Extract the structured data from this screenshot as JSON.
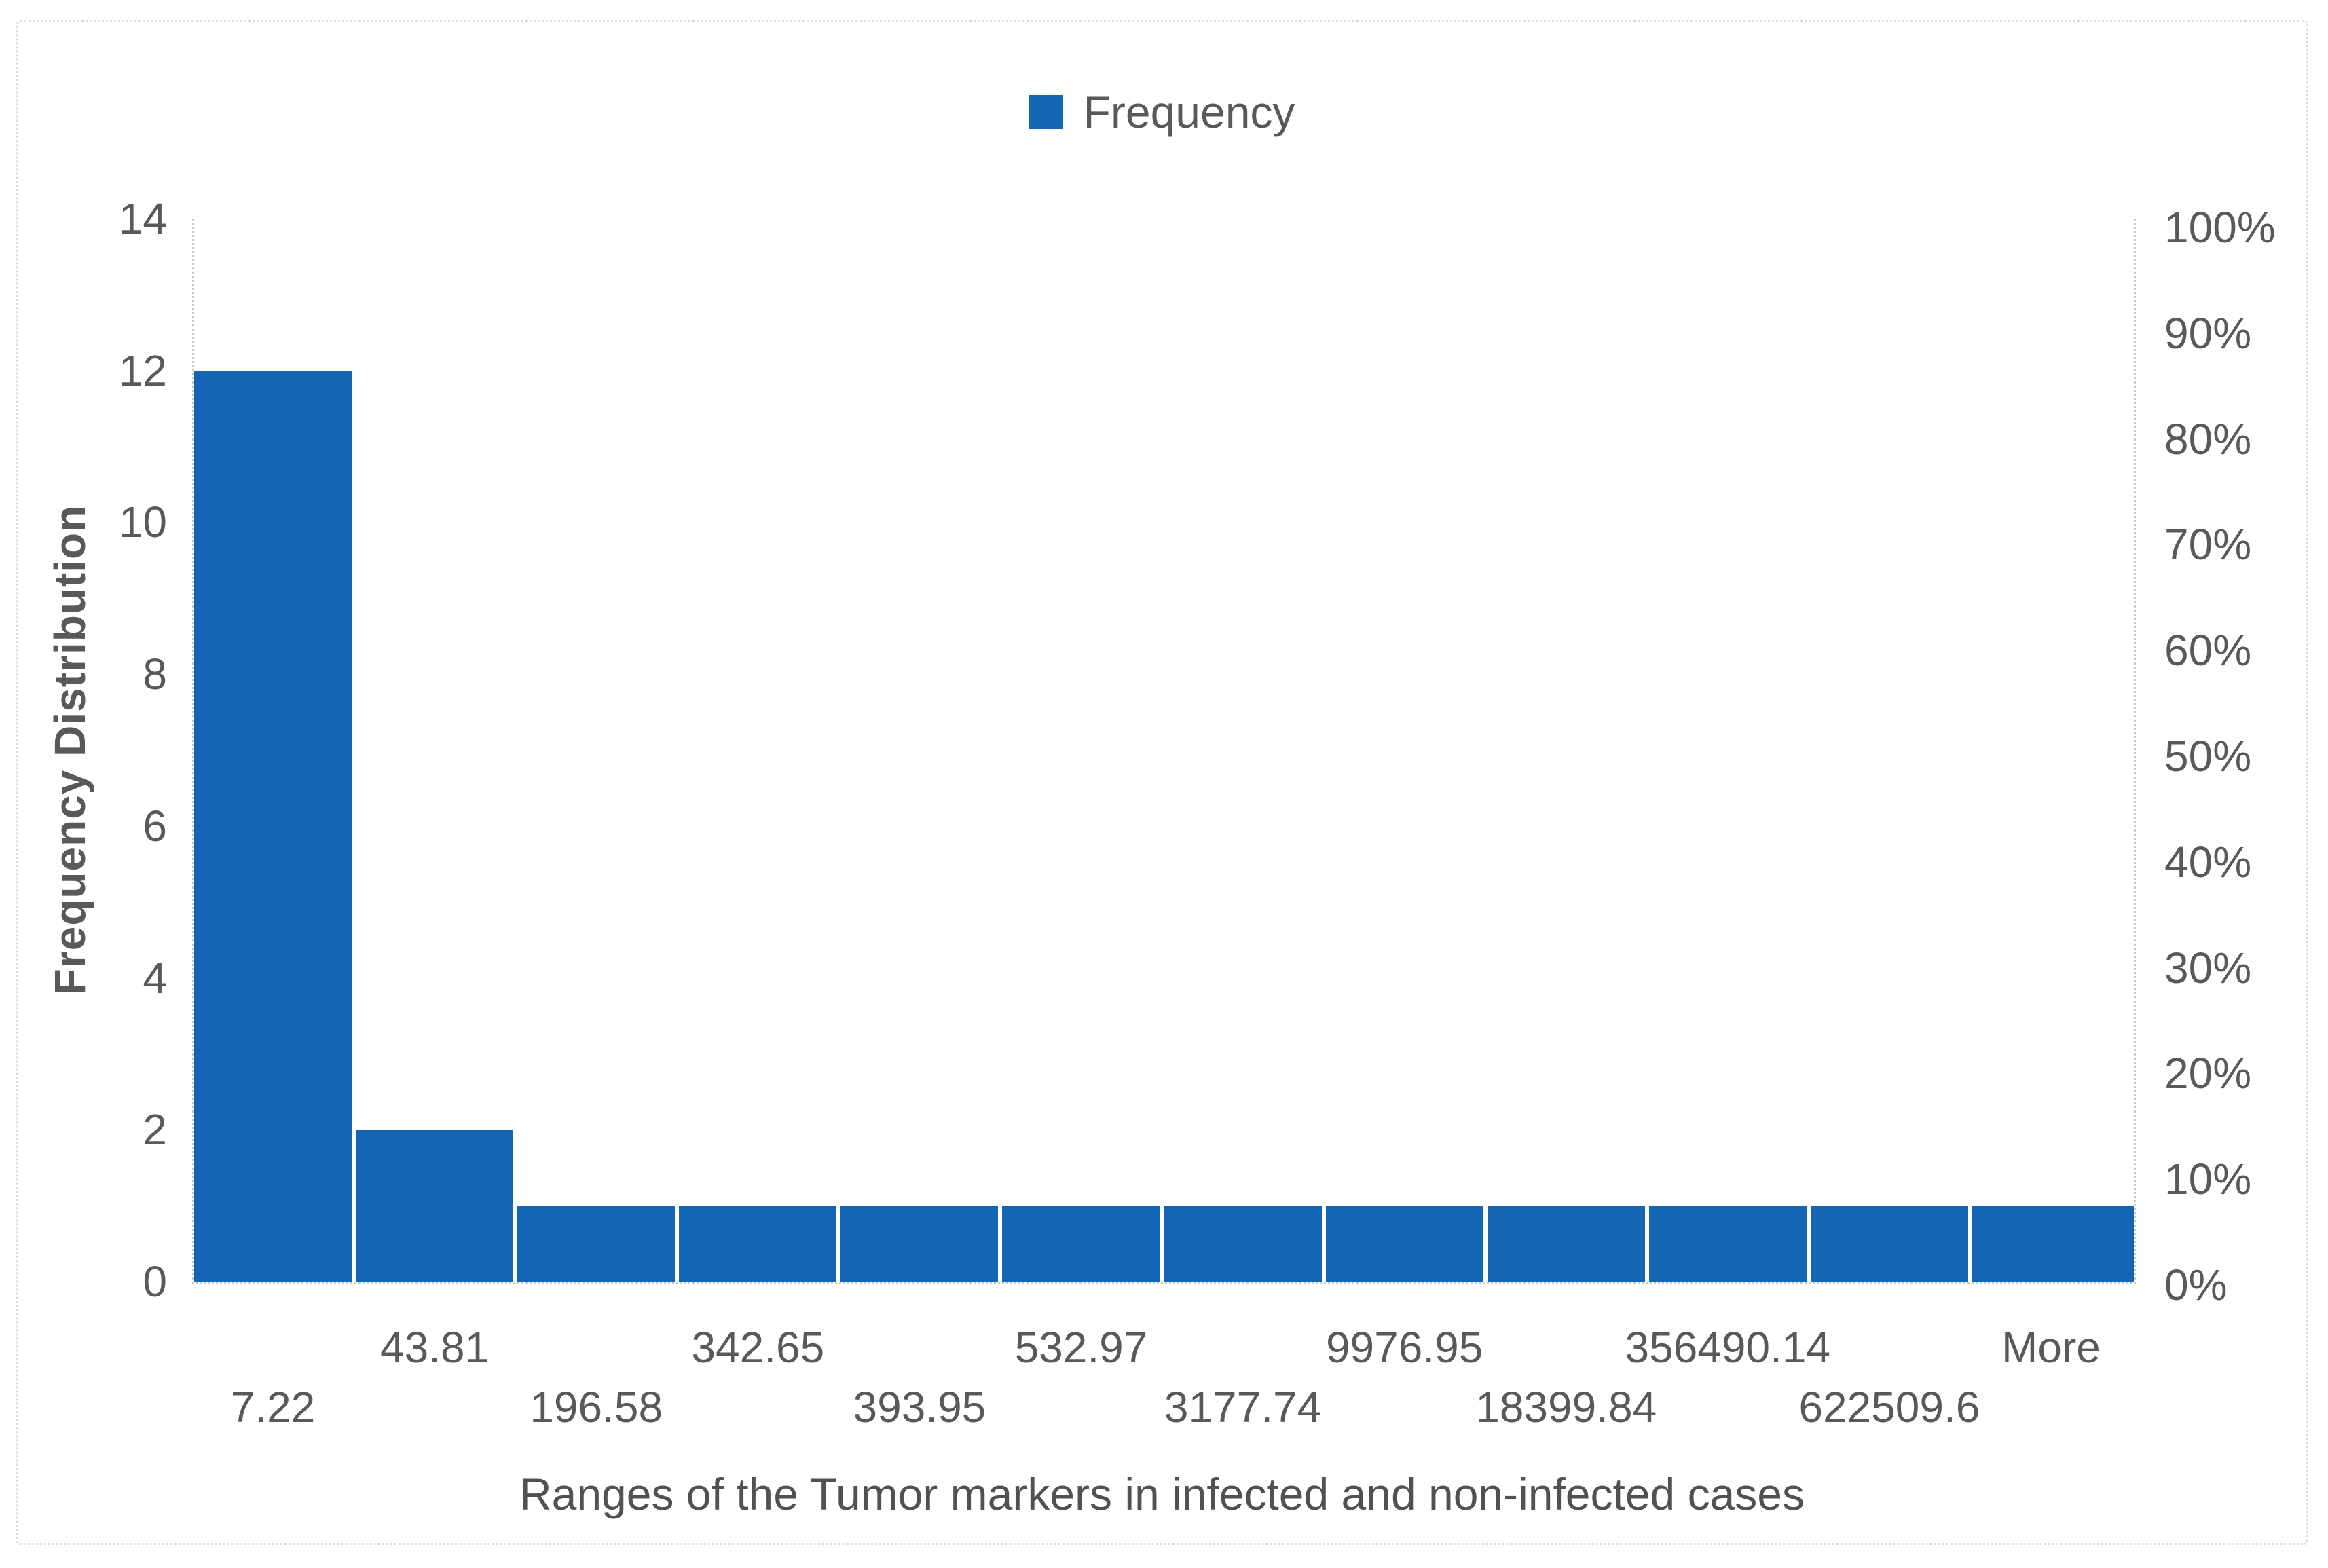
{
  "legend": {
    "label": "Frequency"
  },
  "axes": {
    "left": {
      "title": "Frequency Distribution",
      "ticks": [
        0,
        2,
        4,
        6,
        8,
        10,
        12,
        14
      ],
      "max": 14
    },
    "right": {
      "ticks": [
        "0%",
        "10%",
        "20%",
        "30%",
        "40%",
        "50%",
        "60%",
        "70%",
        "80%",
        "90%",
        "100%"
      ]
    },
    "bottom": {
      "title": "Ranges of the Tumor markers in infected and non-infected cases"
    }
  },
  "colors": {
    "bar_fill": "#1565B5",
    "axis_line": "#c9c9c9",
    "figure_border": "#dcdcdc",
    "tick_text": "#595959",
    "background": "#ffffff"
  },
  "chart_data": {
    "type": "bar",
    "title": "",
    "categories": [
      "7.22",
      "43.81",
      "196.58",
      "342.65",
      "393.95",
      "532.97",
      "3177.74",
      "9976.95",
      "18399.84",
      "356490.14",
      "622509.6",
      "More"
    ],
    "series": [
      {
        "name": "Frequency",
        "values": [
          12,
          2,
          1,
          1,
          1,
          1,
          1,
          1,
          1,
          1,
          1,
          1
        ]
      }
    ],
    "xlabel": "Ranges of the Tumor markers in infected and non-infected cases",
    "ylabel": "Frequency Distribution",
    "ylim": [
      0,
      14
    ],
    "y2lim_percent": [
      0,
      100
    ],
    "grid": false,
    "legend_position": "top-center",
    "bar_gap": "none (histogram, thin white separators)"
  }
}
